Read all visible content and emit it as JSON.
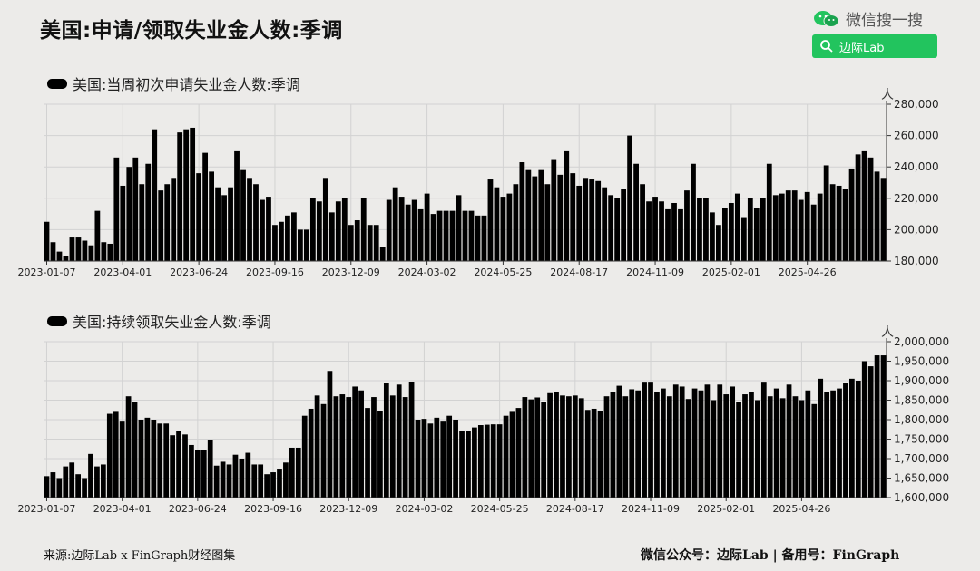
{
  "page": {
    "title": "美国:申请/领取失业金人数:季调",
    "brand": {
      "wechat_text": "微信搜一搜",
      "search_label": "边际Lab",
      "accent": "#22c45e"
    },
    "footer": {
      "source": "来源:边际Lab x FinGraph财经图集",
      "account": "微信公众号：边际Lab  |  备用号：FinGraph"
    }
  },
  "chart_data": [
    {
      "type": "bar",
      "title": "美国:当周初次申请失业金人数:季调",
      "unit": "人",
      "ylim": [
        180000,
        280000
      ],
      "yticks": [
        180000,
        200000,
        220000,
        240000,
        260000,
        280000
      ],
      "ytick_labels": [
        "180,000",
        "200,000",
        "220,000",
        "240,000",
        "260,000",
        "280,000"
      ],
      "xtick_labels": [
        "2023-01-07",
        "2023-04-01",
        "2023-06-24",
        "2023-09-16",
        "2023-12-09",
        "2024-03-02",
        "2024-05-25",
        "2024-08-17",
        "2024-11-09",
        "2025-02-01",
        "2025-04-26"
      ],
      "xtick_every": 12,
      "grid": true,
      "values": [
        205000,
        192000,
        186000,
        183000,
        195000,
        195000,
        193000,
        190000,
        212000,
        192000,
        191000,
        246000,
        228000,
        240000,
        246000,
        229000,
        242000,
        264000,
        225000,
        229000,
        233000,
        262000,
        264000,
        265000,
        236000,
        249000,
        237000,
        227000,
        222000,
        227000,
        250000,
        238000,
        233000,
        229000,
        219000,
        221000,
        203000,
        205000,
        209000,
        211000,
        200000,
        200000,
        220000,
        218000,
        233000,
        211000,
        218000,
        220000,
        203000,
        206000,
        220000,
        203000,
        203000,
        189000,
        219000,
        227000,
        221000,
        216000,
        219000,
        213000,
        223000,
        210000,
        212000,
        212000,
        212000,
        222000,
        212000,
        212000,
        209000,
        209000,
        232000,
        227000,
        221000,
        223000,
        229000,
        243000,
        238000,
        234000,
        238000,
        229000,
        245000,
        235000,
        250000,
        236000,
        228000,
        233000,
        232000,
        231000,
        227000,
        222000,
        220000,
        226000,
        260000,
        242000,
        229000,
        218000,
        221000,
        218000,
        213000,
        217000,
        213000,
        225000,
        242000,
        220000,
        220000,
        211000,
        203000,
        214000,
        217000,
        223000,
        208000,
        220000,
        214000,
        220000,
        242000,
        222000,
        223000,
        225000,
        225000,
        219000,
        224000,
        216000,
        223000,
        241000,
        229000,
        228000,
        226000,
        239000,
        248000,
        250000,
        246000,
        237000,
        233000
      ]
    },
    {
      "type": "bar",
      "title": "美国:持续领取失业金人数:季调",
      "unit": "人",
      "ylim": [
        1600000,
        2000000
      ],
      "yticks": [
        1600000,
        1650000,
        1700000,
        1750000,
        1800000,
        1850000,
        1900000,
        1950000,
        2000000
      ],
      "ytick_labels": [
        "1,600,000",
        "1,650,000",
        "1,700,000",
        "1,750,000",
        "1,800,000",
        "1,850,000",
        "1,900,000",
        "1,950,000",
        "2,000,000"
      ],
      "xtick_labels": [
        "2023-01-07",
        "2023-04-01",
        "2023-06-24",
        "2023-09-16",
        "2023-12-09",
        "2024-03-02",
        "2024-05-25",
        "2024-08-17",
        "2024-11-09",
        "2025-02-01",
        "2025-04-26"
      ],
      "xtick_every": 12,
      "grid": true,
      "values": [
        1655000,
        1665000,
        1650000,
        1680000,
        1690000,
        1660000,
        1650000,
        1712000,
        1680000,
        1685000,
        1815000,
        1820000,
        1795000,
        1860000,
        1845000,
        1800000,
        1805000,
        1800000,
        1790000,
        1790000,
        1760000,
        1770000,
        1762000,
        1735000,
        1722000,
        1722000,
        1748000,
        1682000,
        1692000,
        1685000,
        1710000,
        1700000,
        1715000,
        1685000,
        1685000,
        1660000,
        1665000,
        1672000,
        1690000,
        1728000,
        1728000,
        1810000,
        1828000,
        1862000,
        1840000,
        1925000,
        1860000,
        1865000,
        1858000,
        1885000,
        1875000,
        1830000,
        1858000,
        1823000,
        1893000,
        1862000,
        1890000,
        1858000,
        1897000,
        1800000,
        1802000,
        1790000,
        1805000,
        1795000,
        1810000,
        1800000,
        1772000,
        1770000,
        1780000,
        1786000,
        1787000,
        1788000,
        1788000,
        1810000,
        1820000,
        1830000,
        1858000,
        1852000,
        1857000,
        1845000,
        1868000,
        1870000,
        1862000,
        1860000,
        1862000,
        1855000,
        1825000,
        1828000,
        1823000,
        1860000,
        1870000,
        1887000,
        1860000,
        1878000,
        1875000,
        1895000,
        1895000,
        1870000,
        1880000,
        1860000,
        1890000,
        1885000,
        1853000,
        1880000,
        1875000,
        1890000,
        1850000,
        1890000,
        1865000,
        1885000,
        1845000,
        1865000,
        1870000,
        1850000,
        1895000,
        1860000,
        1880000,
        1855000,
        1890000,
        1860000,
        1850000,
        1875000,
        1840000,
        1905000,
        1870000,
        1875000,
        1880000,
        1893000,
        1905000,
        1900000,
        1950000,
        1937000,
        1965000,
        1965000
      ]
    }
  ]
}
